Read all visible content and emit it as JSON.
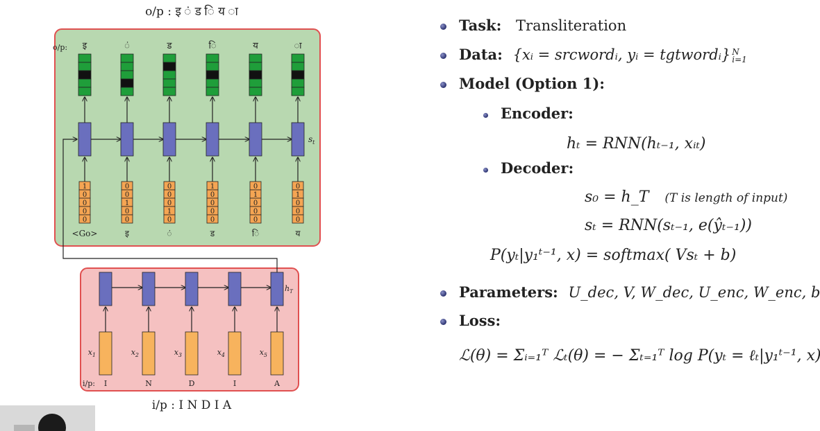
{
  "diagram": {
    "output_title": "o/p : इ ं ड ि य ा",
    "input_title": "i/p : I N D I A",
    "decoder": {
      "op_label": "o/p:",
      "output_chars": [
        "इ",
        "ं",
        "ड",
        "ि",
        "य",
        "ा"
      ],
      "state_label": "s",
      "state_sub": "t",
      "input_labels": [
        "<Go>",
        "इ",
        "ं",
        "ड",
        "ि",
        "य"
      ],
      "onehot": [
        [
          "1",
          "0",
          "0",
          "0",
          "0"
        ],
        [
          "0",
          "0",
          "1",
          "0",
          "0"
        ],
        [
          "0",
          "0",
          "0",
          "1",
          "0"
        ],
        [
          "1",
          "0",
          "0",
          "0",
          "0"
        ],
        [
          "0",
          "1",
          "0",
          "0",
          "0"
        ],
        [
          "0",
          "1",
          "0",
          "0",
          "0"
        ]
      ],
      "softmax_active_index": [
        2,
        3,
        1,
        2,
        2,
        2
      ]
    },
    "encoder": {
      "ip_label": "i/p:",
      "input_chars": [
        "I",
        "N",
        "D",
        "I",
        "A"
      ],
      "x_labels": [
        {
          "v": "x",
          "s": "1"
        },
        {
          "v": "x",
          "s": "2"
        },
        {
          "v": "x",
          "s": "3"
        },
        {
          "v": "x",
          "s": "4"
        },
        {
          "v": "x",
          "s": "5"
        }
      ],
      "hidden_label": "h",
      "hidden_sub": "T"
    },
    "colors": {
      "decoder_bg": "#b8d8b0",
      "encoder_bg": "#f5c1c1",
      "frame_border": "#e05050",
      "rnn_cell": "#6a6fbe",
      "softmax_cell": "#1f9e3a",
      "softmax_active": "#111111",
      "onehot_cell": "#f5a553",
      "encoder_input": "#f7b35d"
    }
  },
  "bullets": {
    "task_label": "Task:",
    "task_value": "Transliteration",
    "data_label": "Data:",
    "data_formula": "{xᵢ = srcwordᵢ,  yᵢ = tgtwordᵢ}",
    "data_sup": "N",
    "data_sub": "i=1",
    "model_label": "Model (Option 1):",
    "encoder_label": "Encoder:",
    "encoder_formula": "hₜ = RNN(hₜ₋₁, xᵢₜ)",
    "decoder_label": "Decoder:",
    "s0_formula": "s₀ = h_T",
    "s0_note": "(T is length of input)",
    "st_formula": "sₜ = RNN(sₜ₋₁, e(ŷₜ₋₁))",
    "p_formula": "P(yₜ|y₁ᵗ⁻¹, x) = softmax( Vsₜ + b)",
    "params_label": "Parameters:",
    "params_value": "U_dec, V, W_dec, U_enc, W_enc, b",
    "loss_label": "Loss:",
    "loss_formula": "ℒ(θ) = Σᵢ₌₁ᵀ ℒₜ(θ) = − Σₜ₌₁ᵀ log P(yₜ = ℓₜ|y₁ᵗ⁻¹, x)"
  }
}
